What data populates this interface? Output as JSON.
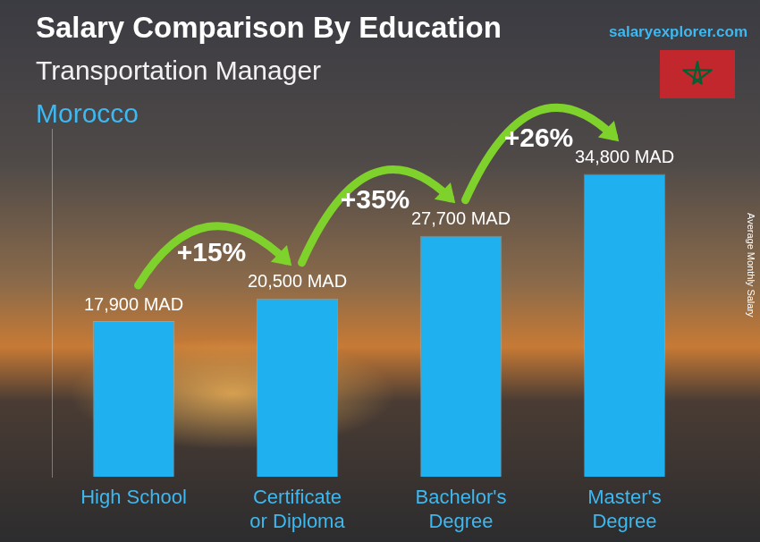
{
  "chart_data": {
    "type": "bar",
    "title": "Salary Comparison By Education",
    "subtitle": "Transportation Manager",
    "region": "Morocco",
    "source": "salaryexplorer.com",
    "y_label": "Average Monthly Salary",
    "categories": [
      "High School",
      "Certificate or Diploma",
      "Bachelor's Degree",
      "Master's Degree"
    ],
    "values": [
      17900,
      20500,
      27700,
      34800
    ],
    "value_labels": [
      "17,900 MAD",
      "20,500 MAD",
      "27,700 MAD",
      "34,800 MAD"
    ],
    "color": "#1fb1ef",
    "ylim": [
      0,
      40000
    ],
    "yticks": [],
    "grid": false,
    "data_labels": true,
    "tick_labels": "x",
    "annotations": [
      {
        "label": "+15%",
        "from": "High School",
        "to": "Certificate or Diploma"
      },
      {
        "label": "+35%",
        "from": "Certificate or Diploma",
        "to": "Bachelor's Degree"
      },
      {
        "label": "+26%",
        "from": "Bachelor's Degree",
        "to": "Master's Degree"
      }
    ]
  }
}
